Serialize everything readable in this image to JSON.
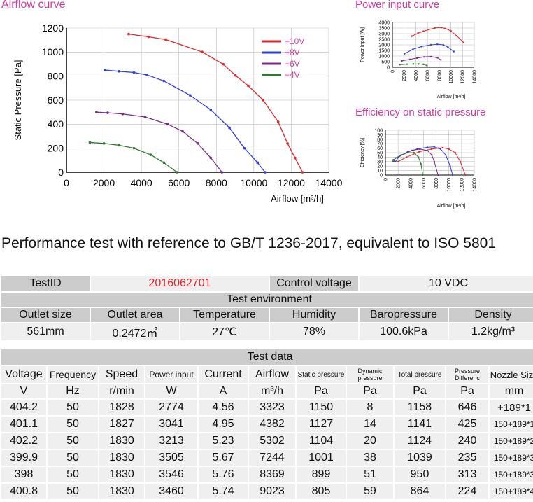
{
  "chart_data": [
    {
      "type": "line",
      "title": "Airflow curve",
      "xlabel": "Airflow [m³/h]",
      "ylabel": "Static Pressure [Pa]",
      "xlim": [
        0,
        14000
      ],
      "ylim": [
        0,
        1200
      ],
      "xticks": [
        "0",
        "2000",
        "4000",
        "6000",
        "8000",
        "10000",
        "12000",
        "14000"
      ],
      "yticks": [
        "0",
        "200",
        "400",
        "600",
        "800",
        "1000",
        "1200"
      ],
      "legend": "top-right",
      "series": [
        {
          "name": "+10V",
          "color": "#e0262a",
          "x": [
            3323,
            4382,
            5302,
            7244,
            8369,
            9023,
            9700,
            10500,
            11300,
            11800,
            12200,
            12600
          ],
          "y": [
            1150,
            1127,
            1104,
            1001,
            899,
            805,
            720,
            600,
            420,
            240,
            120,
            0
          ]
        },
        {
          "name": "+8V",
          "color": "#2e3fdc",
          "x": [
            2050,
            2800,
            3600,
            4300,
            5200,
            6600,
            7700,
            8700,
            9500,
            10200,
            10600
          ],
          "y": [
            850,
            840,
            830,
            810,
            760,
            640,
            520,
            370,
            200,
            80,
            0
          ]
        },
        {
          "name": "+6V",
          "color": "#7a2b8c",
          "x": [
            1600,
            2200,
            3000,
            4200,
            5400,
            6200,
            7000,
            7700,
            8300
          ],
          "y": [
            500,
            495,
            485,
            460,
            400,
            340,
            240,
            120,
            0
          ]
        },
        {
          "name": "+4V",
          "color": "#2f7a2f",
          "x": [
            1250,
            2000,
            2800,
            3600,
            4500,
            5200,
            5900
          ],
          "y": [
            248,
            240,
            225,
            200,
            145,
            80,
            0
          ]
        }
      ]
    },
    {
      "type": "line",
      "title": "Power input curve",
      "xlabel": "Airflow [m³/h]",
      "ylabel": "Power Input [W]",
      "xlim": [
        0,
        14000
      ],
      "ylim": [
        0,
        4000
      ],
      "xticks": [
        "0",
        "2000",
        "4000",
        "6000",
        "8000",
        "10000",
        "12000",
        "14000"
      ],
      "yticks": [
        "0",
        "500",
        "1000",
        "1500",
        "2000",
        "2500",
        "3000",
        "3500",
        "4000"
      ],
      "series": [
        {
          "color": "#e0262a",
          "x": [
            3323,
            4382,
            5302,
            7244,
            8369,
            9023,
            10000,
            11000,
            12200
          ],
          "y": [
            2774,
            3041,
            3213,
            3505,
            3546,
            3460,
            3250,
            2800,
            2200
          ]
        },
        {
          "color": "#2e3fdc",
          "x": [
            2050,
            3500,
            5000,
            6600,
            7700,
            8700,
            9500,
            10500
          ],
          "y": [
            1200,
            1600,
            1850,
            2000,
            2050,
            2000,
            1800,
            1400
          ]
        },
        {
          "color": "#7a2b8c",
          "x": [
            1600,
            3000,
            4200,
            5400,
            6600,
            7700,
            8300
          ],
          "y": [
            560,
            700,
            820,
            920,
            950,
            850,
            650
          ]
        },
        {
          "color": "#2f7a2f",
          "x": [
            1250,
            2500,
            3600,
            4500,
            5300,
            5900
          ],
          "y": [
            230,
            270,
            290,
            290,
            260,
            150
          ]
        }
      ]
    },
    {
      "type": "line",
      "title": "Efficiency on static pressure",
      "xlabel": "Airflow [m³/h]",
      "ylabel": "Efficiency [%]",
      "xlim": [
        0,
        14000
      ],
      "ylim": [
        0,
        100
      ],
      "xticks": [
        "0",
        "2000",
        "4000",
        "6000",
        "8000",
        "10000",
        "12000",
        "14000"
      ],
      "yticks": [
        "0",
        "10",
        "20",
        "30",
        "40",
        "50",
        "60",
        "70",
        "80",
        "90",
        "100"
      ],
      "series": [
        {
          "color": "#e0262a",
          "x": [
            2000,
            3323,
            4382,
            5302,
            7244,
            8369,
            9023,
            10000,
            11000,
            11800,
            12600
          ],
          "y": [
            30,
            40,
            46,
            52,
            58,
            60,
            61,
            58,
            50,
            30,
            0
          ]
        },
        {
          "color": "#2e3fdc",
          "x": [
            1600,
            2050,
            3500,
            5000,
            6600,
            7700,
            8700,
            9500,
            10200,
            10600
          ],
          "y": [
            30,
            40,
            52,
            58,
            62,
            63,
            58,
            45,
            20,
            0
          ]
        },
        {
          "color": "#7a2b8c",
          "x": [
            1300,
            1600,
            3000,
            4200,
            5400,
            6600,
            7300,
            7700,
            8300
          ],
          "y": [
            30,
            38,
            48,
            55,
            58,
            55,
            45,
            30,
            0
          ]
        },
        {
          "color": "#2f7a2f",
          "x": [
            1100,
            1250,
            2500,
            3600,
            4500,
            5200,
            5600,
            5900
          ],
          "y": [
            30,
            34,
            45,
            50,
            50,
            40,
            25,
            0
          ]
        }
      ]
    }
  ],
  "heading": "Performance test with reference to GB/T 1236-2017, equivalent to ISO 5801",
  "info": {
    "testid_label": "TestID",
    "testid_value": "2016062701",
    "control_label": "Control voltage",
    "control_value": "10 VDC",
    "env_title": "Test environment",
    "env_headers": [
      "Outlet size",
      "Outlet area",
      "Temperature",
      "Humidity",
      "Baropressure",
      "Density"
    ],
    "env_values": [
      "561mm",
      "0.2472㎡",
      "27℃",
      "78%",
      "100.6kPa",
      "1.2kg/m³"
    ]
  },
  "test_data": {
    "title": "Test data",
    "headers": [
      "Voltage",
      "Frequency",
      "Speed",
      "Power input",
      "Current",
      "Airflow",
      "Static pressure",
      "Dynamic pressure",
      "Total pressure",
      "Pressure Differenc",
      "Nozzle Size"
    ],
    "units": [
      "V",
      "Hz",
      "r/min",
      "W",
      "A",
      "m³/h",
      "Pa",
      "Pa",
      "Pa",
      "Pa",
      "mm"
    ],
    "rows": [
      [
        "404.2",
        "50",
        "1828",
        "2774",
        "4.56",
        "3323",
        "1150",
        "8",
        "1158",
        "646",
        "+189*1"
      ],
      [
        "401.1",
        "50",
        "1827",
        "3041",
        "4.95",
        "4382",
        "1127",
        "14",
        "1141",
        "425",
        "150+189*1"
      ],
      [
        "402.2",
        "50",
        "1830",
        "3213",
        "5.23",
        "5302",
        "1104",
        "20",
        "1124",
        "240",
        "150+189*2"
      ],
      [
        "399.9",
        "50",
        "1830",
        "3505",
        "5.67",
        "7244",
        "1001",
        "38",
        "1039",
        "235",
        "150+189*3"
      ],
      [
        "398",
        "50",
        "1830",
        "3546",
        "5.76",
        "8369",
        "899",
        "51",
        "950",
        "313",
        "150+189*3"
      ],
      [
        "400.8",
        "50",
        "1830",
        "3460",
        "5.74",
        "9023",
        "805",
        "59",
        "864",
        "224",
        "150+189*4"
      ]
    ]
  }
}
